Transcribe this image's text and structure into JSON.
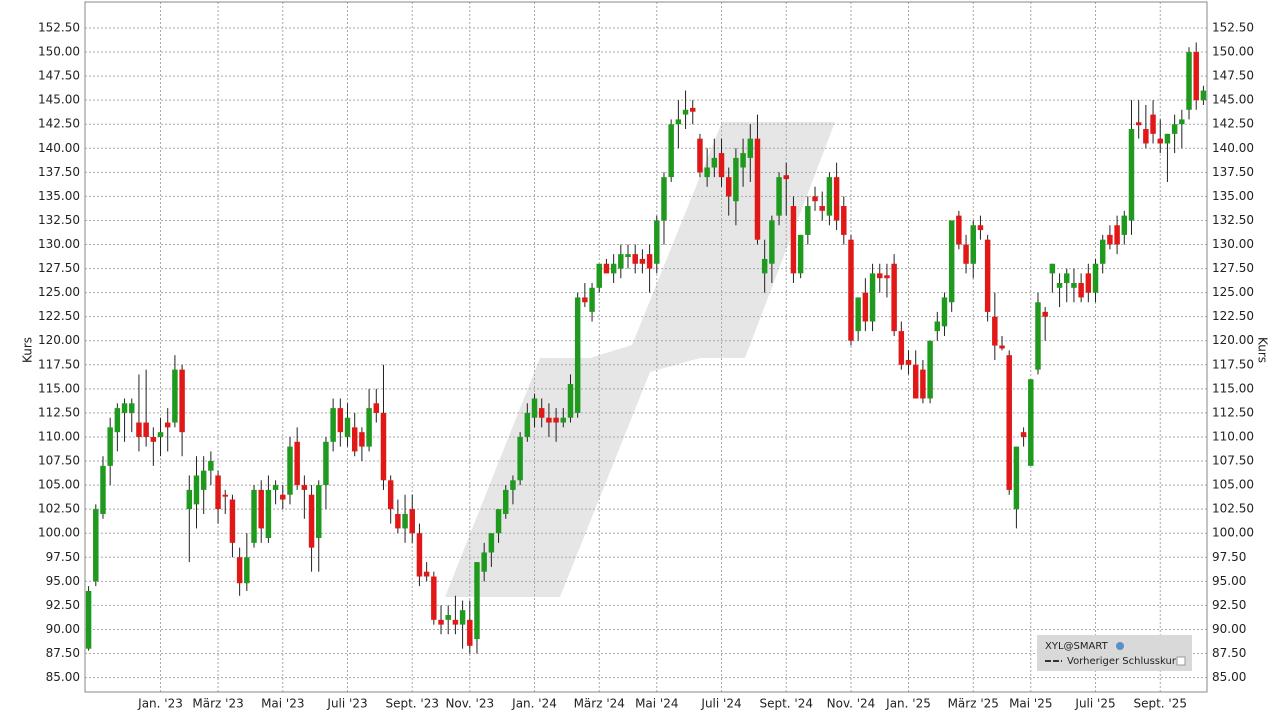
{
  "chart_data": {
    "type": "candlestick",
    "y_label": "Kurs",
    "legend": {
      "title": "XYL@SMART",
      "items": [
        "Vorheriger Schlusskurs"
      ]
    },
    "up_color": "#1f9a1f",
    "down_color": "#e01818",
    "grid": true,
    "ylim": [
      83.5,
      155.2
    ],
    "yticks": [
      {
        "value": 85,
        "label": "85.00"
      },
      {
        "value": 87.5,
        "label": "87.50"
      },
      {
        "value": 90,
        "label": "90.00"
      },
      {
        "value": 92.5,
        "label": "92.50"
      },
      {
        "value": 95,
        "label": "95.00"
      },
      {
        "value": 97.5,
        "label": "97.50"
      },
      {
        "value": 100,
        "label": "100.00"
      },
      {
        "value": 102.5,
        "label": "102.50"
      },
      {
        "value": 105,
        "label": "105.00"
      },
      {
        "value": 107.5,
        "label": "107.50"
      },
      {
        "value": 110,
        "label": "110.00"
      },
      {
        "value": 112.5,
        "label": "112.50"
      },
      {
        "value": 115,
        "label": "115.00"
      },
      {
        "value": 117.5,
        "label": "117.50"
      },
      {
        "value": 120,
        "label": "120.00"
      },
      {
        "value": 122.5,
        "label": "122.50"
      },
      {
        "value": 125,
        "label": "125.00"
      },
      {
        "value": 127.5,
        "label": "127.50"
      },
      {
        "value": 130,
        "label": "130.00"
      },
      {
        "value": 132.5,
        "label": "132.50"
      },
      {
        "value": 135,
        "label": "135.00"
      },
      {
        "value": 137.5,
        "label": "137.50"
      },
      {
        "value": 140,
        "label": "140.00"
      },
      {
        "value": 142.5,
        "label": "142.50"
      },
      {
        "value": 145,
        "label": "145.00"
      },
      {
        "value": 147.5,
        "label": "147.50"
      },
      {
        "value": 150,
        "label": "150.00"
      },
      {
        "value": 152.5,
        "label": "152.50"
      }
    ],
    "categories": [
      null,
      null,
      null,
      null,
      null,
      null,
      null,
      null,
      null,
      null,
      "Jan. '23",
      null,
      null,
      null,
      null,
      null,
      null,
      null,
      "März '23",
      null,
      null,
      null,
      null,
      null,
      null,
      null,
      null,
      "Mai '23",
      null,
      null,
      null,
      null,
      null,
      null,
      null,
      null,
      "Juli '23",
      null,
      null,
      null,
      null,
      null,
      null,
      null,
      null,
      "Sept. '23",
      null,
      null,
      null,
      null,
      null,
      null,
      null,
      "Nov. '23",
      null,
      null,
      null,
      null,
      null,
      null,
      null,
      null,
      "Jan. '24",
      null,
      null,
      null,
      null,
      null,
      null,
      null,
      null,
      "März '24",
      null,
      null,
      null,
      null,
      null,
      null,
      null,
      "Mai '24",
      null,
      null,
      null,
      null,
      null,
      null,
      null,
      null,
      "Juli '24",
      null,
      null,
      null,
      null,
      null,
      null,
      null,
      null,
      "Sept. '24",
      null,
      null,
      null,
      null,
      null,
      null,
      null,
      null,
      "Nov. '24",
      null,
      null,
      null,
      null,
      null,
      null,
      null,
      "Jan. '25",
      null,
      null,
      null,
      null,
      null,
      null,
      null,
      null,
      "März '25",
      null,
      null,
      null,
      null,
      null,
      null,
      null,
      "Mai '25",
      null,
      null,
      null,
      null,
      null,
      null,
      null,
      null,
      "Juli '25",
      null,
      null,
      null,
      null,
      null,
      null,
      null,
      null,
      "Sept. '25",
      null,
      null,
      null,
      null,
      null,
      null
    ],
    "open": [
      88,
      95,
      102,
      107,
      110.5,
      112.5,
      112.5,
      111.5,
      111.5,
      110,
      110,
      111.5,
      111.5,
      117,
      102.5,
      103,
      104.5,
      106.5,
      106,
      104,
      103.5,
      97.5,
      94.8,
      99,
      104.5,
      99.5,
      104.5,
      104,
      104,
      109.5,
      105,
      104,
      99.5,
      105,
      109.5,
      113,
      110,
      111,
      110.5,
      109,
      113.5,
      112.5,
      105.5,
      102,
      100.5,
      102.5,
      100,
      96,
      95.5,
      91,
      91,
      91,
      90.5,
      91,
      89,
      96,
      98,
      100,
      102,
      104.5,
      105.5,
      110,
      112,
      113,
      112,
      112,
      111.5,
      112,
      112.5,
      124.5,
      123,
      125.5,
      128,
      127,
      127.5,
      128.7,
      129,
      128.5,
      129,
      128,
      132.5,
      137,
      142.5,
      143.5,
      144.2,
      141,
      137,
      138,
      139.5,
      137,
      134.5,
      138,
      139,
      141,
      127,
      128,
      133,
      137.2,
      134,
      127,
      131,
      135,
      134,
      133,
      137,
      134,
      130.5,
      121,
      125,
      122,
      127,
      126.8,
      128,
      121,
      118,
      117.5,
      117,
      114,
      121,
      121.5,
      124,
      133,
      130,
      128,
      132,
      130.5,
      122.5,
      119.5,
      118.5,
      102.5,
      110.5,
      107,
      117,
      123,
      127,
      125.5,
      126,
      125.5,
      126,
      127,
      125,
      128,
      131,
      132,
      131,
      132.5,
      142.7,
      142,
      143.5,
      141,
      140.5,
      141.5,
      142.5,
      144,
      150,
      145
    ],
    "high": [
      94.5,
      103,
      108,
      112,
      113.5,
      114,
      114,
      116.5,
      117,
      111,
      112,
      113,
      118.5,
      117.5,
      106,
      108,
      108,
      108.5,
      106.5,
      104.5,
      104,
      98.5,
      100,
      105,
      105.5,
      106,
      105.5,
      105,
      110,
      111,
      106,
      105,
      105.5,
      110,
      114,
      114,
      113.5,
      112.5,
      111,
      115,
      115,
      117.5,
      106,
      103.5,
      104,
      104,
      101,
      97,
      96,
      92.5,
      92.5,
      93.5,
      93,
      93,
      97,
      99,
      100,
      102.5,
      105,
      106,
      110.5,
      113.5,
      114.5,
      114,
      113.5,
      113,
      113,
      116.5,
      125,
      126,
      126,
      128,
      128.5,
      129,
      130,
      130,
      130,
      129.5,
      130,
      133,
      137.5,
      143,
      145,
      146,
      145,
      141.5,
      140,
      141,
      141,
      138,
      140,
      141,
      142.5,
      143.5,
      130.5,
      133,
      137.5,
      138.5,
      135,
      131,
      135,
      136,
      135.5,
      137.5,
      138.5,
      135,
      131,
      124.5,
      126.5,
      128,
      128,
      128,
      129,
      122,
      119,
      119,
      118,
      120,
      123,
      125,
      132.5,
      133.5,
      131,
      132.5,
      133,
      131,
      125,
      120.5,
      119,
      109,
      111,
      116,
      125,
      123.5,
      128,
      127,
      127.5,
      127.5,
      127,
      128,
      128.5,
      131,
      132,
      133,
      133.5,
      145,
      145,
      144.5,
      145,
      143,
      141.5,
      143.5,
      144,
      150.5,
      151,
      146.5
    ],
    "low": [
      87.8,
      94.5,
      101.5,
      105,
      108.5,
      109.5,
      110.5,
      108.5,
      109,
      107,
      108,
      108.5,
      111,
      108,
      97,
      100.5,
      102,
      105,
      101,
      102,
      97.5,
      93.5,
      94,
      98.5,
      99,
      99,
      103,
      102.5,
      103,
      104.5,
      101.5,
      96,
      96,
      102.5,
      108.5,
      109,
      109,
      108,
      107.5,
      108.5,
      111.5,
      104.5,
      101,
      100,
      99,
      99,
      94.5,
      95,
      90.5,
      89.5,
      89.5,
      89.5,
      88,
      87.5,
      87.5,
      95,
      96.5,
      99,
      101.5,
      103,
      105,
      109.5,
      111,
      111,
      110,
      109.5,
      111,
      111.5,
      112,
      123.5,
      122,
      125,
      127,
      126,
      126.5,
      127.5,
      127,
      127,
      125,
      127,
      130,
      136.5,
      140,
      142,
      142.5,
      137,
      136,
      137,
      136,
      133,
      132,
      136,
      136.5,
      130,
      125,
      126,
      132,
      133,
      126,
      126.5,
      130,
      133.5,
      132.5,
      132,
      131.5,
      130,
      119.5,
      120,
      121,
      121,
      125,
      124.5,
      120.5,
      117,
      116.5,
      114,
      113.5,
      113.5,
      120,
      120.5,
      123,
      129.5,
      127,
      126.5,
      130.5,
      122,
      118,
      119,
      104,
      100.5,
      109,
      107,
      116.5,
      120,
      125,
      123.5,
      124,
      124,
      124,
      124,
      124,
      127,
      129.5,
      129,
      130,
      131,
      141,
      140,
      140.5,
      139.5,
      136.5,
      139.5,
      140,
      143,
      144,
      144.5
    ],
    "close": [
      94,
      102.5,
      107,
      111,
      113,
      113.5,
      113.5,
      110,
      110,
      109.5,
      110.5,
      111,
      117,
      110.5,
      104.5,
      106,
      106.5,
      107.5,
      102.5,
      103.8,
      99,
      94.8,
      97.5,
      104.5,
      100.5,
      104.5,
      105,
      103.5,
      109,
      105,
      104.5,
      98.5,
      105,
      109.5,
      113,
      110.5,
      112,
      108.5,
      109,
      113,
      112.5,
      105.5,
      102.5,
      100.5,
      102,
      100,
      95.5,
      95.5,
      91,
      90.5,
      91.5,
      90.5,
      92,
      88.3,
      97,
      98,
      100,
      102.5,
      104.5,
      105.5,
      110,
      112.5,
      114,
      112,
      111.5,
      111.5,
      112,
      115.5,
      124.5,
      124,
      125.5,
      128,
      127,
      128,
      129,
      129,
      128,
      128,
      127.5,
      132.5,
      137,
      142.5,
      143,
      144,
      143.8,
      137.5,
      138,
      139,
      137,
      135,
      139,
      139.5,
      141,
      130.5,
      128.5,
      132.5,
      137,
      136.8,
      127,
      131,
      134,
      134.5,
      133.5,
      137,
      132.5,
      131,
      120,
      124.5,
      122,
      127,
      126.5,
      126.5,
      121,
      117.5,
      117.5,
      114,
      114,
      120,
      122,
      124.5,
      132.5,
      130,
      128,
      132,
      131.5,
      123,
      119.5,
      119.2,
      104.5,
      109,
      110,
      116,
      124,
      122.5,
      128,
      126,
      127,
      126,
      124.5,
      125,
      128,
      130.5,
      130,
      130,
      133,
      142,
      142.4,
      140.5,
      141.5,
      140.5,
      141.5,
      142.5,
      143,
      150,
      145,
      146
    ]
  }
}
